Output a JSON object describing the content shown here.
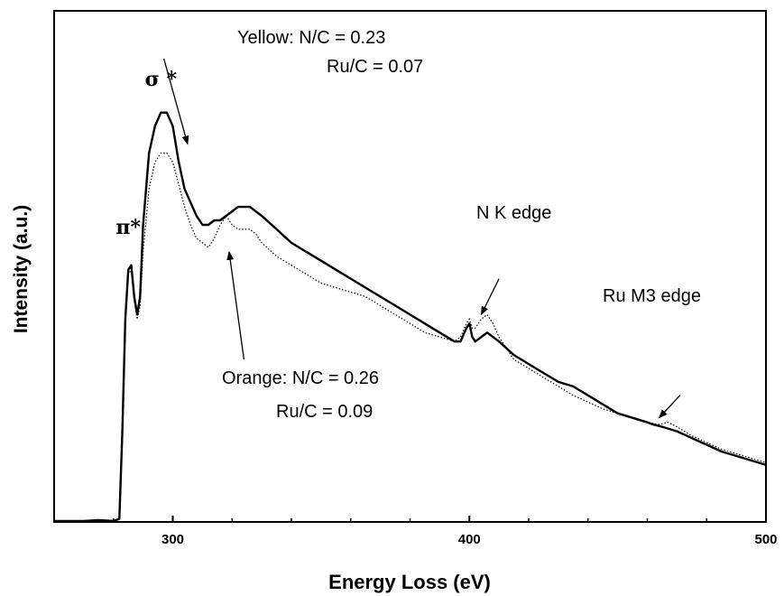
{
  "chart_data": {
    "type": "line",
    "title": "",
    "xlabel": "Energy Loss (eV)",
    "ylabel": "Intensity (a.u.)",
    "xlim": [
      260,
      500
    ],
    "ylim": [
      0,
      1
    ],
    "x_ticks": [
      300,
      400,
      500
    ],
    "y_tick_labels": false,
    "grid": false,
    "legend": "none",
    "series": [
      {
        "name": "Orange",
        "style": "solid",
        "color": "#000000",
        "points": [
          [
            260,
            0.0
          ],
          [
            270,
            0.0
          ],
          [
            275,
            0.002
          ],
          [
            280,
            0.0
          ],
          [
            282,
            0.005
          ],
          [
            283,
            0.2
          ],
          [
            284,
            0.45
          ],
          [
            285,
            0.56
          ],
          [
            286,
            0.57
          ],
          [
            287,
            0.5
          ],
          [
            288,
            0.46
          ],
          [
            289,
            0.5
          ],
          [
            290,
            0.66
          ],
          [
            292,
            0.82
          ],
          [
            294,
            0.88
          ],
          [
            296,
            0.91
          ],
          [
            298,
            0.91
          ],
          [
            300,
            0.88
          ],
          [
            302,
            0.8
          ],
          [
            304,
            0.74
          ],
          [
            306,
            0.71
          ],
          [
            308,
            0.68
          ],
          [
            310,
            0.66
          ],
          [
            312,
            0.66
          ],
          [
            314,
            0.67
          ],
          [
            316,
            0.67
          ],
          [
            318,
            0.68
          ],
          [
            320,
            0.69
          ],
          [
            322,
            0.7
          ],
          [
            324,
            0.7
          ],
          [
            326,
            0.7
          ],
          [
            328,
            0.69
          ],
          [
            330,
            0.68
          ],
          [
            335,
            0.65
          ],
          [
            340,
            0.62
          ],
          [
            345,
            0.6
          ],
          [
            350,
            0.58
          ],
          [
            355,
            0.56
          ],
          [
            360,
            0.54
          ],
          [
            365,
            0.52
          ],
          [
            370,
            0.5
          ],
          [
            375,
            0.48
          ],
          [
            380,
            0.46
          ],
          [
            385,
            0.44
          ],
          [
            390,
            0.42
          ],
          [
            395,
            0.4
          ],
          [
            397,
            0.4
          ],
          [
            399,
            0.43
          ],
          [
            400,
            0.44
          ],
          [
            401,
            0.41
          ],
          [
            402,
            0.4
          ],
          [
            404,
            0.41
          ],
          [
            406,
            0.42
          ],
          [
            408,
            0.41
          ],
          [
            410,
            0.4
          ],
          [
            415,
            0.37
          ],
          [
            420,
            0.35
          ],
          [
            425,
            0.33
          ],
          [
            430,
            0.31
          ],
          [
            435,
            0.3
          ],
          [
            440,
            0.28
          ],
          [
            445,
            0.26
          ],
          [
            450,
            0.24
          ],
          [
            455,
            0.23
          ],
          [
            460,
            0.22
          ],
          [
            462,
            0.215
          ],
          [
            465,
            0.21
          ],
          [
            470,
            0.2
          ],
          [
            475,
            0.185
          ],
          [
            480,
            0.17
          ],
          [
            485,
            0.155
          ],
          [
            490,
            0.145
          ],
          [
            495,
            0.135
          ],
          [
            500,
            0.125
          ]
        ]
      },
      {
        "name": "Yellow",
        "style": "dotted",
        "color": "#000000",
        "points": [
          [
            260,
            0.0
          ],
          [
            270,
            0.0
          ],
          [
            280,
            0.0
          ],
          [
            282,
            0.005
          ],
          [
            283,
            0.2
          ],
          [
            284,
            0.44
          ],
          [
            285,
            0.55
          ],
          [
            286,
            0.56
          ],
          [
            287,
            0.49
          ],
          [
            288,
            0.45
          ],
          [
            289,
            0.48
          ],
          [
            290,
            0.6
          ],
          [
            292,
            0.74
          ],
          [
            294,
            0.8
          ],
          [
            296,
            0.82
          ],
          [
            298,
            0.82
          ],
          [
            300,
            0.8
          ],
          [
            302,
            0.75
          ],
          [
            304,
            0.7
          ],
          [
            306,
            0.66
          ],
          [
            308,
            0.63
          ],
          [
            310,
            0.62
          ],
          [
            312,
            0.61
          ],
          [
            314,
            0.63
          ],
          [
            316,
            0.66
          ],
          [
            318,
            0.68
          ],
          [
            320,
            0.66
          ],
          [
            322,
            0.65
          ],
          [
            324,
            0.65
          ],
          [
            326,
            0.65
          ],
          [
            328,
            0.64
          ],
          [
            330,
            0.62
          ],
          [
            335,
            0.59
          ],
          [
            340,
            0.57
          ],
          [
            345,
            0.55
          ],
          [
            350,
            0.53
          ],
          [
            355,
            0.52
          ],
          [
            360,
            0.51
          ],
          [
            365,
            0.5
          ],
          [
            370,
            0.48
          ],
          [
            375,
            0.46
          ],
          [
            380,
            0.44
          ],
          [
            385,
            0.42
          ],
          [
            390,
            0.41
          ],
          [
            395,
            0.4
          ],
          [
            397,
            0.41
          ],
          [
            399,
            0.44
          ],
          [
            400,
            0.45
          ],
          [
            401,
            0.43
          ],
          [
            402,
            0.43
          ],
          [
            404,
            0.45
          ],
          [
            406,
            0.46
          ],
          [
            408,
            0.44
          ],
          [
            410,
            0.41
          ],
          [
            415,
            0.36
          ],
          [
            420,
            0.34
          ],
          [
            425,
            0.32
          ],
          [
            430,
            0.3
          ],
          [
            435,
            0.28
          ],
          [
            440,
            0.265
          ],
          [
            445,
            0.25
          ],
          [
            450,
            0.24
          ],
          [
            455,
            0.23
          ],
          [
            460,
            0.22
          ],
          [
            464,
            0.215
          ],
          [
            467,
            0.22
          ],
          [
            470,
            0.21
          ],
          [
            475,
            0.19
          ],
          [
            480,
            0.175
          ],
          [
            485,
            0.16
          ],
          [
            490,
            0.15
          ],
          [
            495,
            0.14
          ],
          [
            500,
            0.13
          ]
        ]
      }
    ],
    "annotations": [
      {
        "text": "Yellow:    N/C = 0.23",
        "line2": "Ru/C = 0.07",
        "arrow_from_x": 297,
        "arrow_from_y": 1.03,
        "arrow_to_x": 305,
        "arrow_to_y": 0.84
      },
      {
        "text": "Orange: N/C = 0.26",
        "line2": "Ru/C = 0.09",
        "arrow_from_x": 324,
        "arrow_from_y": 0.36,
        "arrow_to_x": 319,
        "arrow_to_y": 0.6
      },
      {
        "text": "N  K edge",
        "arrow_from_x": 410,
        "arrow_from_y": 0.54,
        "arrow_to_x": 404,
        "arrow_to_y": 0.46
      },
      {
        "text": "Ru  M3 edge",
        "arrow_from_x": 471,
        "arrow_from_y": 0.28,
        "arrow_to_x": 464,
        "arrow_to_y": 0.23
      }
    ],
    "peak_labels": [
      {
        "text": "π*",
        "x": 285,
        "y": 0.64
      },
      {
        "text": "σ *",
        "x": 296,
        "y": 0.97
      }
    ]
  }
}
